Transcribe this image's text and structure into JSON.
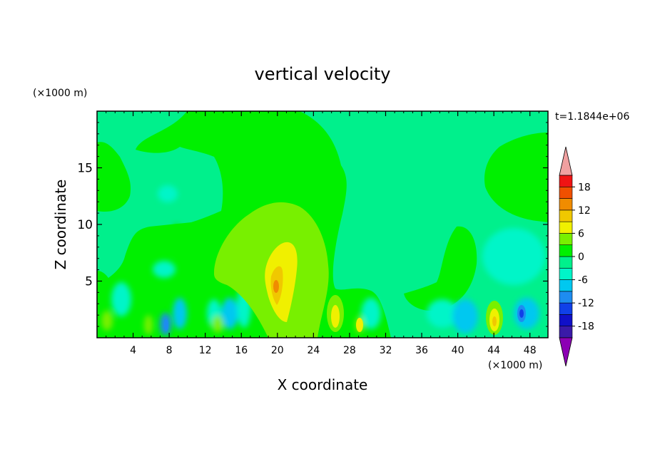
{
  "chart_data": {
    "type": "heatmap",
    "title": "vertical velocity",
    "xlabel": "X coordinate",
    "ylabel": "Z coordinate",
    "x_unit": "(×1000 m)",
    "y_unit": "(×1000 m)",
    "time_label": "t=1.1844e+06",
    "xlim": [
      0,
      50
    ],
    "ylim": [
      0,
      20
    ],
    "x_ticks": [
      4,
      8,
      12,
      16,
      20,
      24,
      28,
      32,
      36,
      40,
      44,
      48
    ],
    "y_ticks": [
      5,
      10,
      15
    ],
    "x_tick_labels": [
      "4",
      "8",
      "12",
      "16",
      "20",
      "24",
      "28",
      "32",
      "36",
      "40",
      "44",
      "48"
    ],
    "y_tick_labels": [
      "5",
      "10",
      "15"
    ],
    "grid": false,
    "colorbar": {
      "levels": [
        -21,
        -18,
        -15,
        -12,
        -9,
        -6,
        -3,
        0,
        3,
        6,
        9,
        12,
        15,
        18,
        21
      ],
      "tick_values": [
        18,
        12,
        6,
        0,
        -6,
        -12,
        -18
      ],
      "tick_labels": [
        "18",
        "12",
        "6",
        "0",
        "-6",
        "-12",
        "-18"
      ],
      "colors": [
        "#3a1aa8",
        "#1010c8",
        "#1040e8",
        "#1e8cf0",
        "#00c8f0",
        "#00f5c8",
        "#00f08c",
        "#00f000",
        "#78f000",
        "#f0f000",
        "#f0c800",
        "#f08c00",
        "#f05000",
        "#f01414"
      ],
      "under_color": "#8c00b4",
      "over_color": "#f0a0a0"
    },
    "field_features": [
      {
        "x": 20,
        "z": 4.5,
        "value": 10
      },
      {
        "x": 19.5,
        "z": 6,
        "value": 7
      },
      {
        "x": 20.5,
        "z": 3,
        "value": 6
      },
      {
        "x": 22,
        "z": 6,
        "value": 3
      },
      {
        "x": 26,
        "z": 2,
        "value": 8
      },
      {
        "x": 44,
        "z": 1.5,
        "value": 8
      },
      {
        "x": 29.5,
        "z": 1,
        "value": 5
      },
      {
        "x": 47,
        "z": 2,
        "value": -12
      },
      {
        "x": 7.5,
        "z": 1,
        "value": -9
      },
      {
        "x": 39.5,
        "z": 2,
        "value": -5
      },
      {
        "x": 13.5,
        "z": 1.5,
        "value": 4
      },
      {
        "x": 1,
        "z": 1.5,
        "value": 3
      },
      {
        "x": 42,
        "z": 7,
        "value": 0
      },
      {
        "x": 5,
        "z": 14,
        "value": 0
      },
      {
        "x": 47,
        "z": 14,
        "value": 0
      }
    ]
  }
}
